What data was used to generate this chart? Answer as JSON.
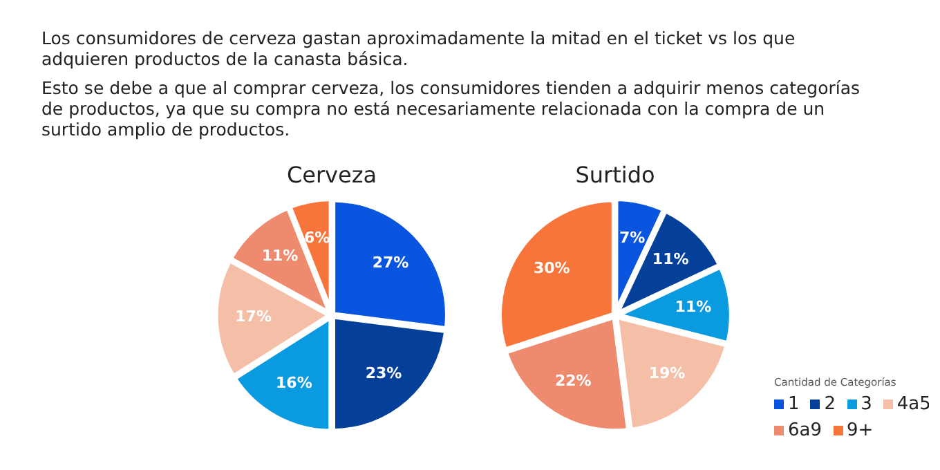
{
  "chart_data": [
    {
      "type": "pie",
      "title": "Cerveza",
      "categories": [
        null,
        null,
        null,
        null,
        null,
        null
      ],
      "values": [
        27,
        23,
        16,
        17,
        11,
        6
      ],
      "colors": [
        "#0a55e0",
        "#043f9a",
        "#0a9ae0",
        "#f4bfa6",
        "#ee8a6e",
        "#f7743a"
      ],
      "value_labels": [
        "27%",
        "23%",
        "16%",
        "17%",
        "11%",
        "6%"
      ],
      "annotations": [
        "Los consumidores de cerveza gastan aproximadamente la mitad en el ticket vs los que adquieren productos de la canasta básica.",
        "Esto se debe a que al comprar cerveza, los consumidores tienden a adquirir menos categorías de productos, ya que su compra no está necesariamente relacionada con la compra de un surtido amplio de productos."
      ]
    },
    {
      "type": "pie",
      "title": "Surtido",
      "categories": [
        "1",
        "2",
        "3",
        "4a5",
        "6a9",
        "9+"
      ],
      "values": [
        7,
        11,
        11,
        19,
        22,
        30
      ],
      "colors": [
        "#0a55e0",
        "#043f9a",
        "#0a9ae0",
        "#f4bfa6",
        "#ee8a6e",
        "#f7743a"
      ],
      "value_labels": [
        "7%",
        "11%",
        "11%",
        "19%",
        "22%",
        "30%"
      ],
      "legend": "right",
      "legend_title": "Cantidad de Categorías"
    }
  ]
}
